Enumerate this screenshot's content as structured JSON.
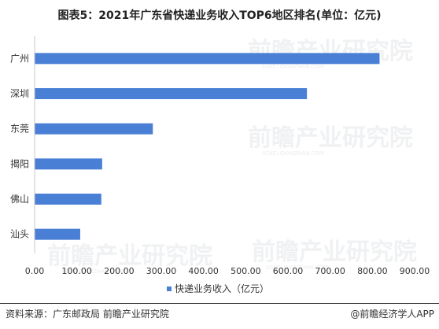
{
  "title": "图表5：2021年广东省快递业务收入TOP6地区排名(单位：亿元)",
  "watermark": "前瞻产业研究院",
  "watermark_sub": "ASKCI.QIANZHAN.COM",
  "footer": {
    "source": "资料来源：广东邮政局 前瞻产业研究院",
    "brand": "@前瞻经济学人APP"
  },
  "colors": {
    "bar": "#4a7fd6",
    "axis": "#c8c8c8",
    "text": "#333333"
  },
  "chart_data": {
    "type": "bar",
    "orientation": "horizontal",
    "categories": [
      "广州",
      "深圳",
      "东莞",
      "揭阳",
      "佛山",
      "汕头"
    ],
    "series": [
      {
        "name": "快递业务收入（亿元）",
        "values": [
          817,
          645,
          280,
          160,
          158,
          108
        ]
      }
    ],
    "xlim": [
      0,
      900
    ],
    "xticks": [
      "0.00",
      "100.00",
      "200.00",
      "300.00",
      "400.00",
      "500.00",
      "600.00",
      "700.00",
      "800.00",
      "900.00"
    ],
    "grid": false,
    "legend": "bottom"
  }
}
